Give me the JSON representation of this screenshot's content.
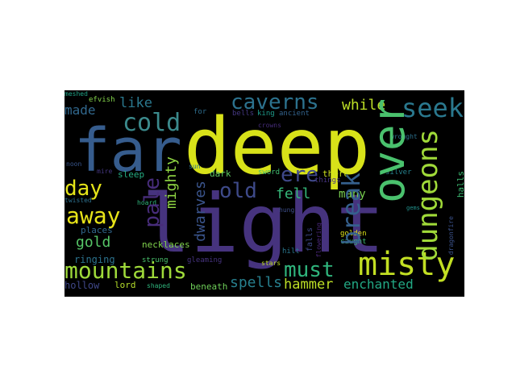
{
  "words": [
    {
      "text": "deep",
      "color": "#d8e219"
    },
    {
      "text": "light",
      "color": "#46337e"
    },
    {
      "text": "far",
      "color": "#365c8d"
    },
    {
      "text": "over",
      "color": "#4ac16d"
    },
    {
      "text": "misty",
      "color": "#c2df23"
    },
    {
      "text": "caverns",
      "color": "#2c728e"
    },
    {
      "text": "cold",
      "color": "#3b8a8c"
    },
    {
      "text": "mountains",
      "color": "#9fda3a"
    },
    {
      "text": "away",
      "color": "#e8e419"
    },
    {
      "text": "dungeons",
      "color": "#a0da39"
    },
    {
      "text": "seek",
      "color": "#2a788e"
    },
    {
      "text": "day",
      "color": "#e5e419"
    },
    {
      "text": "pale",
      "color": "#472c7a"
    },
    {
      "text": "break",
      "color": "#35608d"
    },
    {
      "text": "old",
      "color": "#3e4a89"
    },
    {
      "text": "ere",
      "color": "#3f4889"
    },
    {
      "text": "must",
      "color": "#2fb47c"
    },
    {
      "text": "hammer",
      "color": "#bddf26"
    },
    {
      "text": "enchanted",
      "color": "#22a884"
    },
    {
      "text": "dwarves",
      "color": "#3a548c"
    },
    {
      "text": "mighty",
      "color": "#90d743"
    },
    {
      "text": "spells",
      "color": "#277f8e"
    },
    {
      "text": "while",
      "color": "#bddf26"
    },
    {
      "text": "made",
      "color": "#31688e"
    },
    {
      "text": "like",
      "color": "#2a788e"
    },
    {
      "text": "fell",
      "color": "#35b779"
    },
    {
      "text": "gold",
      "color": "#56c667"
    },
    {
      "text": "many",
      "color": "#7ad151"
    },
    {
      "text": "ringing",
      "color": "#2c738e"
    },
    {
      "text": "hollow",
      "color": "#3f4788"
    },
    {
      "text": "lord",
      "color": "#b5de2b"
    },
    {
      "text": "beneath",
      "color": "#6ece58"
    },
    {
      "text": "efvish",
      "color": "#84d44b"
    },
    {
      "text": "meshed",
      "color": "#20a386"
    },
    {
      "text": "for",
      "color": "#2e6e8e"
    },
    {
      "text": "bells",
      "color": "#453882"
    },
    {
      "text": "king",
      "color": "#1e9b8a"
    },
    {
      "text": "ancient",
      "color": "#33638d"
    },
    {
      "text": "dark",
      "color": "#5ec962"
    },
    {
      "text": "sword",
      "color": "#40bd72"
    },
    {
      "text": "there",
      "color": "#cde11d"
    },
    {
      "text": "things",
      "color": "#463480"
    },
    {
      "text": "silver",
      "color": "#26828e"
    },
    {
      "text": "sleep",
      "color": "#25ac82"
    },
    {
      "text": "mire",
      "color": "#453781"
    },
    {
      "text": "sun",
      "color": "#2c738e"
    },
    {
      "text": "noon",
      "color": "#39568c"
    },
    {
      "text": "twisted",
      "color": "#2d708e"
    },
    {
      "text": "hoard",
      "color": "#2fb47c"
    },
    {
      "text": "places",
      "color": "#31688e"
    },
    {
      "text": "necklaces",
      "color": "#81d34d"
    },
    {
      "text": "strung",
      "color": "#4ac16d"
    },
    {
      "text": "gleaming",
      "color": "#46337e"
    },
    {
      "text": "hung",
      "color": "#3d4e8a"
    },
    {
      "text": "falls",
      "color": "#3e4989"
    },
    {
      "text": "flowering",
      "color": "#482677"
    },
    {
      "text": "golden",
      "color": "#dfe318"
    },
    {
      "text": "caught",
      "color": "#3fbc73"
    },
    {
      "text": "hilt",
      "color": "#2a778e"
    },
    {
      "text": "stars",
      "color": "#c0df25"
    },
    {
      "text": "shaped",
      "color": "#2fb47c"
    },
    {
      "text": "crowns",
      "color": "#472d7b"
    },
    {
      "text": "wrought",
      "color": "#2c718e"
    },
    {
      "text": "halls",
      "color": "#3dbc74"
    },
    {
      "text": "gems",
      "color": "#21918c"
    },
    {
      "text": "dragonfire",
      "color": "#3b528b"
    }
  ]
}
